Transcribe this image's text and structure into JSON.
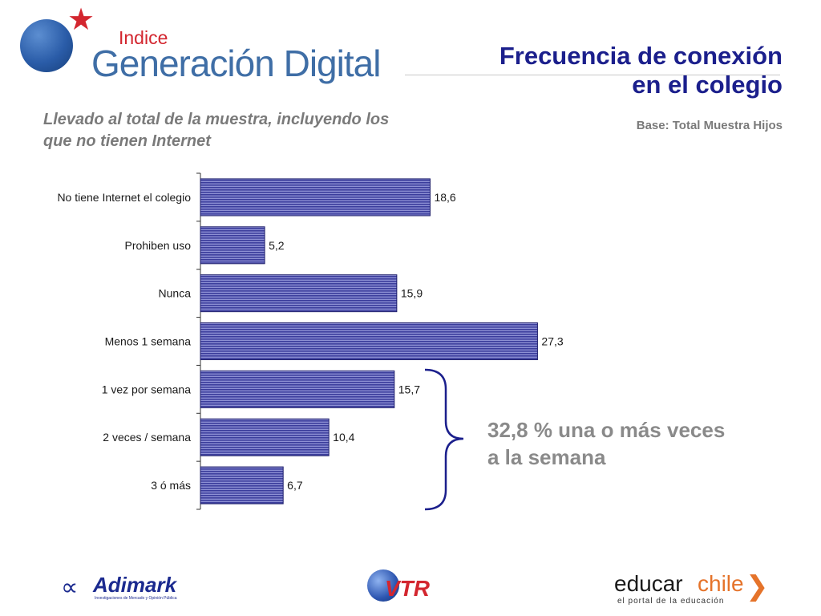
{
  "header": {
    "logo": {
      "line1": "Indice",
      "line2": "Generación Digital",
      "icon": "globe-star-logo-icon"
    },
    "title_line1": "Frecuencia de conexión",
    "title_line2": "en el colegio",
    "subtitle_line1": "Llevado al total de la muestra, incluyendo los",
    "subtitle_line2": "que no tienen Internet",
    "base": "Base: Total Muestra Hijos"
  },
  "chart_data": {
    "type": "bar",
    "orientation": "horizontal",
    "categories": [
      "No tiene Internet el colegio",
      "Prohiben uso",
      "Nunca",
      "Menos 1 semana",
      "1 vez por semana",
      "2 veces / semana",
      "3 ó más"
    ],
    "values": [
      18.6,
      5.2,
      15.9,
      27.3,
      15.7,
      10.4,
      6.7
    ],
    "value_labels": [
      "18,6",
      "5,2",
      "15,9",
      "27,3",
      "15,7",
      "10,4",
      "6,7"
    ],
    "xlim": [
      0,
      30
    ],
    "grid": false,
    "legend": "none",
    "bar_color": "#3a3a9a"
  },
  "annotation": {
    "line1": "32,8 % una o más veces",
    "line2": "a la semana",
    "brace_color": "#1b1f8c"
  },
  "footer": {
    "adimark": {
      "name": "Adimark",
      "tagline": "Investigaciones de Mercado y Opinión Pública"
    },
    "vtr": {
      "name": "VTR"
    },
    "educarchile": {
      "name_part1": "educar",
      "name_part2": "chile",
      "tagline": "el portal de la educación"
    }
  }
}
